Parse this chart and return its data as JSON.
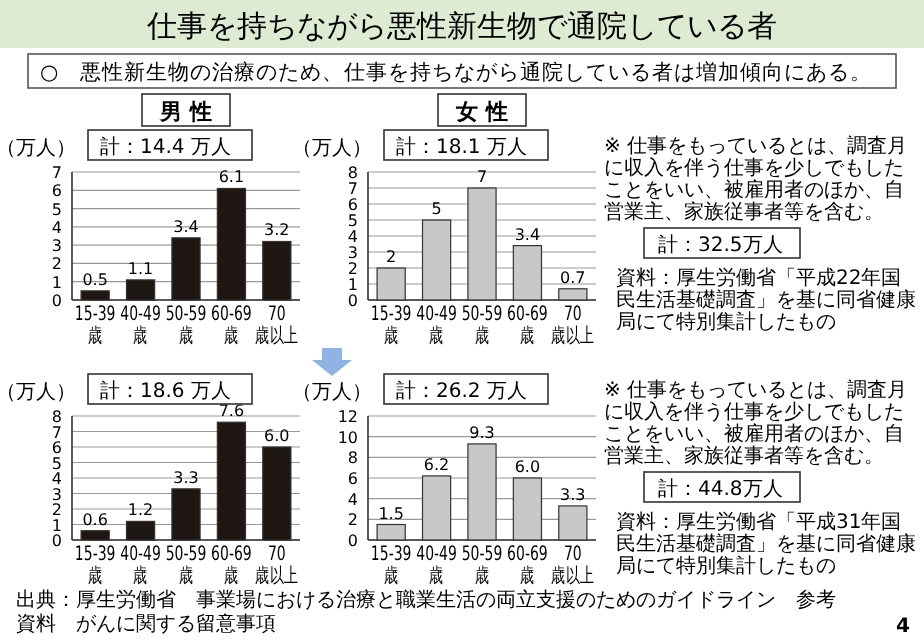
{
  "chart_data": [
    {
      "type": "other",
      "title": "仕事を持ちながら悪性新生物で通院している者",
      "subtitle": "○　悪性新生物の治療のため、仕事を持ちながら通院している者は増加傾向にある。",
      "annotations": [
        "出典：厚生労働省　事業場における治療と職業生活の両立支援のためのガイドライン　参考資料　がんに関する留意事項",
        "4"
      ]
    },
    {
      "type": "bar",
      "title": "男 性",
      "ylabel": "（万人）",
      "categories": [
        "15-39 歳",
        "40-49 歳",
        "50-59 歳",
        "60-69 歳",
        "70 歳以上"
      ],
      "values": [
        0.5,
        1.1,
        3.4,
        6.1,
        3.2
      ],
      "value_labels": [
        "0.5",
        "1.1",
        "3.4",
        "6.1",
        "3.2"
      ],
      "color": "#1e1612",
      "ylim": [
        0,
        7
      ],
      "yticks": [
        0,
        1,
        2,
        3,
        4,
        5,
        6,
        7
      ],
      "grid": "y",
      "annotations": [
        "計：14.4 万人"
      ]
    },
    {
      "type": "bar",
      "title": "女 性",
      "ylabel": "（万人）",
      "categories": [
        "15-39 歳",
        "40-49 歳",
        "50-59 歳",
        "60-69 歳",
        "70 歳以上"
      ],
      "values": [
        2,
        5,
        7,
        3.4,
        0.7
      ],
      "value_labels": [
        "2",
        "5",
        "7",
        "3.4",
        "0.7"
      ],
      "color": "#c8c8c8",
      "ylim": [
        0,
        8
      ],
      "yticks": [
        0,
        1,
        2,
        3,
        4,
        5,
        6,
        7,
        8
      ],
      "grid": "y",
      "annotations": [
        "計：18.1 万人",
        "※ 仕事をもっているとは、調査月に収入を伴う仕事を少しでもしたことをいい、被雇用者のほか、自営業主、家族従事者等を含む。",
        "計：32.5万人",
        "資料：厚生労働省「平成22年国民生活基礎調査」を基に同省健康局にて特別集計したもの"
      ]
    },
    {
      "type": "bar",
      "ylabel": "（万人）",
      "categories": [
        "15-39 歳",
        "40-49 歳",
        "50-59 歳",
        "60-69 歳",
        "70 歳以上"
      ],
      "values": [
        0.6,
        1.2,
        3.3,
        7.6,
        6.0
      ],
      "value_labels": [
        "0.6",
        "1.2",
        "3.3",
        "7.6",
        "6.0"
      ],
      "color": "#1e1612",
      "ylim": [
        0,
        8
      ],
      "yticks": [
        0,
        1,
        2,
        3,
        4,
        5,
        6,
        7,
        8
      ],
      "grid": "y",
      "annotations": [
        "計：18.6 万人"
      ]
    },
    {
      "type": "bar",
      "ylabel": "（万人）",
      "categories": [
        "15-39 歳",
        "40-49 歳",
        "50-59 歳",
        "60-69 歳",
        "70 歳以上"
      ],
      "values": [
        1.5,
        6.2,
        9.3,
        6.0,
        3.3
      ],
      "value_labels": [
        "1.5",
        "6.2",
        "9.3",
        "6.0",
        "3.3"
      ],
      "color": "#c8c8c8",
      "ylim": [
        0,
        12
      ],
      "yticks": [
        0,
        2,
        4,
        6,
        8,
        10,
        12
      ],
      "grid": "y",
      "annotations": [
        "計：26.2 万人",
        "※ 仕事をもっているとは、調査月に収入を伴う仕事を少しでもしたことをいい、被雇用者のほか、自営業主、家族従事者等を含む。",
        "計：44.8万人",
        "資料：厚生労働省「平成31年国民生活基礎調査」を基に同省健康局にて特別集計したもの"
      ]
    }
  ]
}
